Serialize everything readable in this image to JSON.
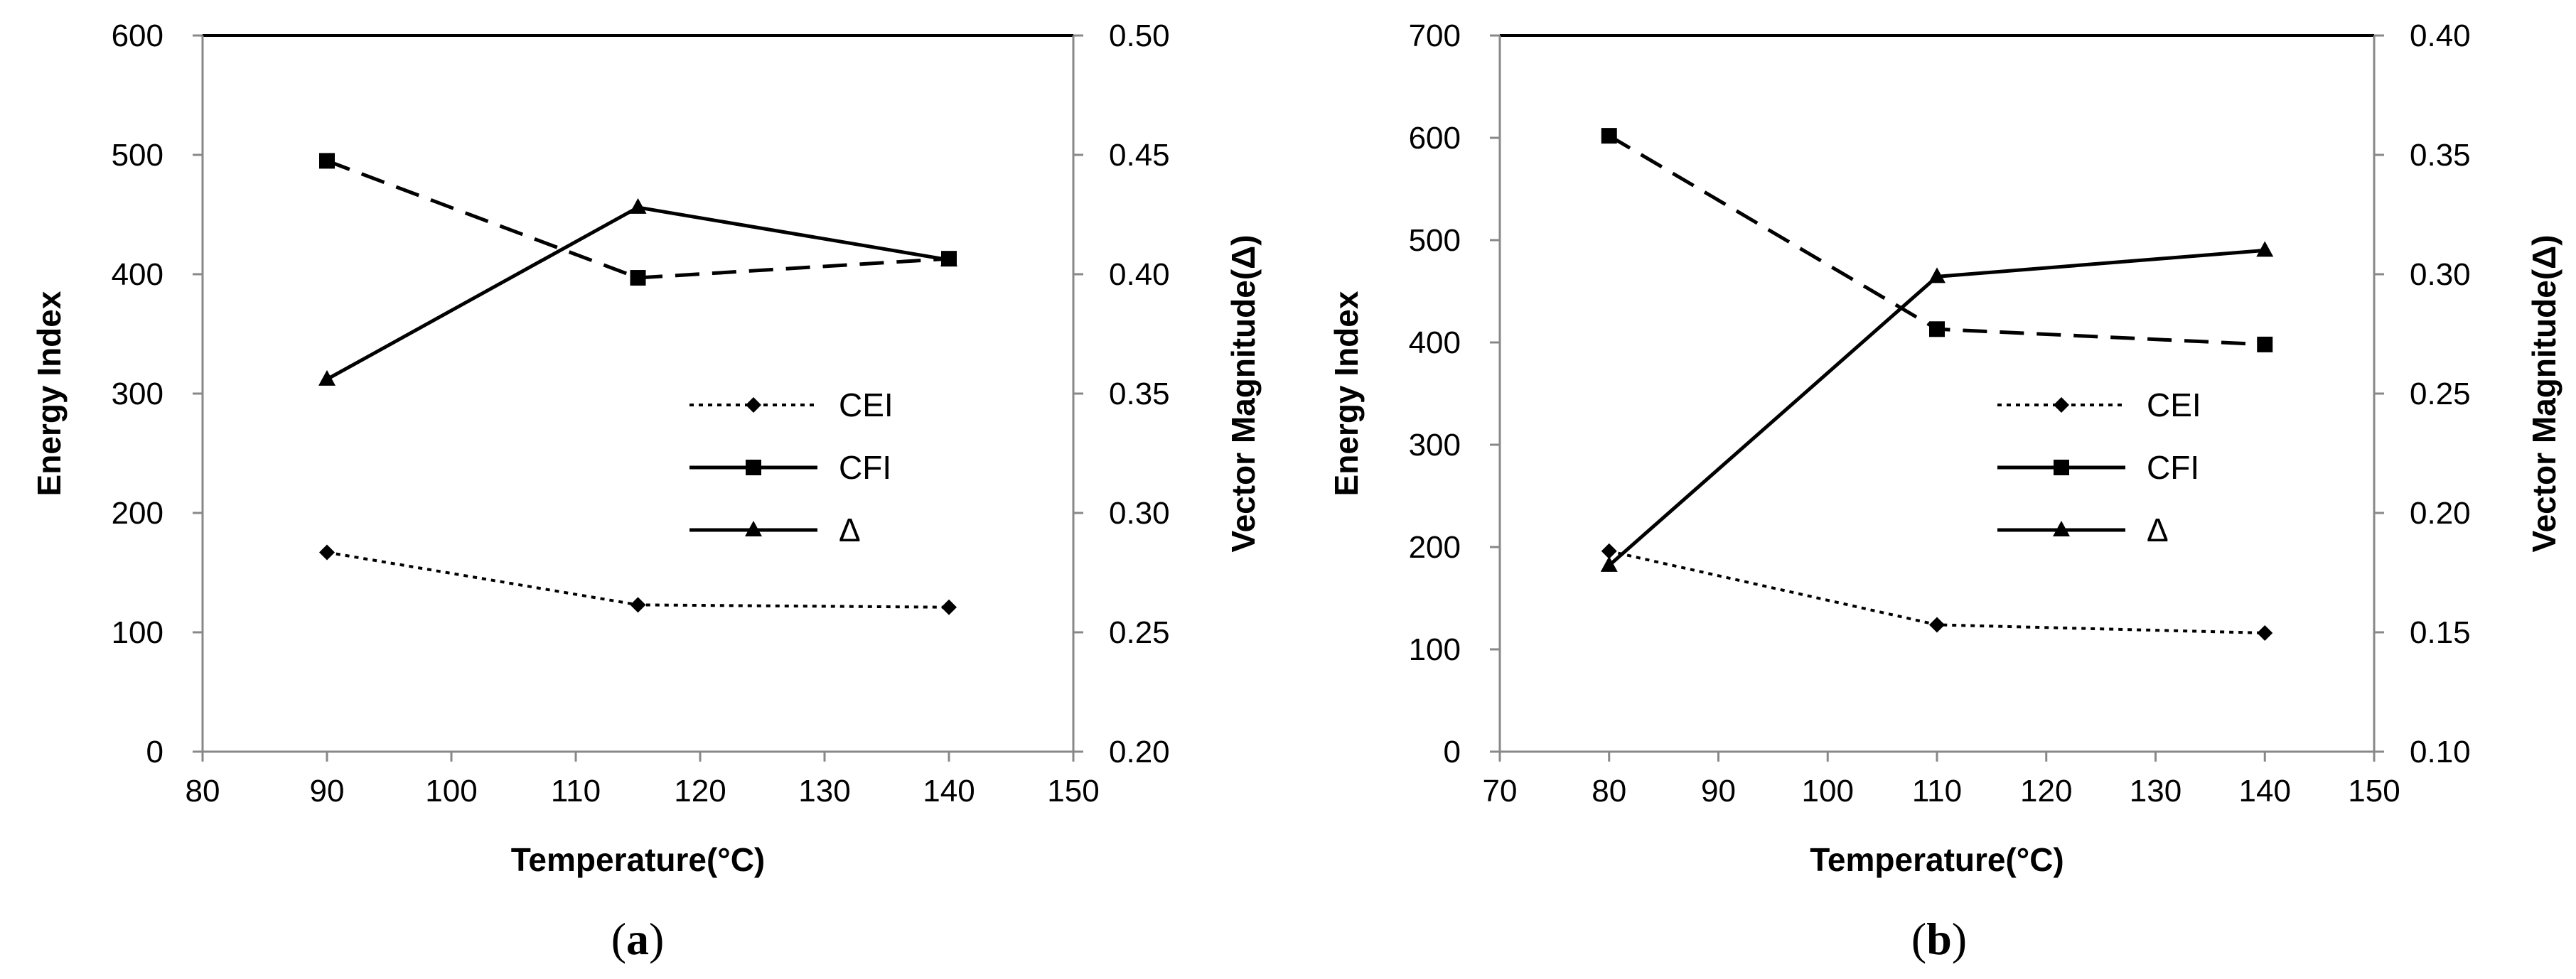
{
  "chart_data": [
    {
      "type": "line",
      "panel_label": "(a)",
      "panel_letter": "a",
      "xlabel": "Temperature(°C)",
      "ylabel": "Energy Index",
      "y2label": "Vector Magnitude(Δ)",
      "xlim": [
        80,
        150
      ],
      "xticks": [
        80,
        90,
        100,
        110,
        120,
        130,
        140,
        150
      ],
      "ylim": [
        0,
        600
      ],
      "yticks": [
        0,
        100,
        200,
        300,
        400,
        500,
        600
      ],
      "y2lim": [
        0.2,
        0.5
      ],
      "y2ticks": [
        "0.20",
        "0.25",
        "0.30",
        "0.35",
        "0.40",
        "0.45",
        "0.50"
      ],
      "legend_position": "center-right",
      "series": [
        {
          "name": "CEI",
          "axis": "left",
          "style": "dotted",
          "marker": "diamond",
          "x": [
            90,
            115,
            140
          ],
          "values": [
            167,
            123,
            121
          ]
        },
        {
          "name": "CFI",
          "axis": "left",
          "style": "dashed",
          "marker": "square",
          "x": [
            90,
            115,
            140
          ],
          "values": [
            495,
            397,
            413
          ]
        },
        {
          "name": "Δ",
          "axis": "right",
          "style": "solid",
          "marker": "triangle",
          "x": [
            90,
            115,
            140
          ],
          "values": [
            0.356,
            0.428,
            0.406
          ]
        }
      ]
    },
    {
      "type": "line",
      "panel_label": "(b)",
      "panel_letter": "b",
      "xlabel": "Temperature(°C)",
      "ylabel": "Energy Index",
      "y2label": "Vector Magnitude(Δ)",
      "xlim": [
        70,
        150
      ],
      "xticks": [
        70,
        80,
        90,
        100,
        110,
        120,
        130,
        140,
        150
      ],
      "ylim": [
        0,
        700
      ],
      "yticks": [
        0,
        100,
        200,
        300,
        400,
        500,
        600,
        700
      ],
      "y2lim": [
        0.1,
        0.4
      ],
      "y2ticks": [
        "0.10",
        "0.15",
        "0.20",
        "0.25",
        "0.30",
        "0.35",
        "0.40"
      ],
      "legend_position": "center-right",
      "series": [
        {
          "name": "CEI",
          "axis": "left",
          "style": "dotted",
          "marker": "diamond",
          "x": [
            80,
            110,
            140
          ],
          "values": [
            196,
            124,
            116
          ]
        },
        {
          "name": "CFI",
          "axis": "left",
          "style": "dashed",
          "marker": "square",
          "x": [
            80,
            110,
            140
          ],
          "values": [
            602,
            413,
            398
          ]
        },
        {
          "name": "Δ",
          "axis": "right",
          "style": "solid",
          "marker": "triangle",
          "x": [
            80,
            110,
            140
          ],
          "values": [
            0.178,
            0.299,
            0.31
          ]
        }
      ]
    }
  ]
}
